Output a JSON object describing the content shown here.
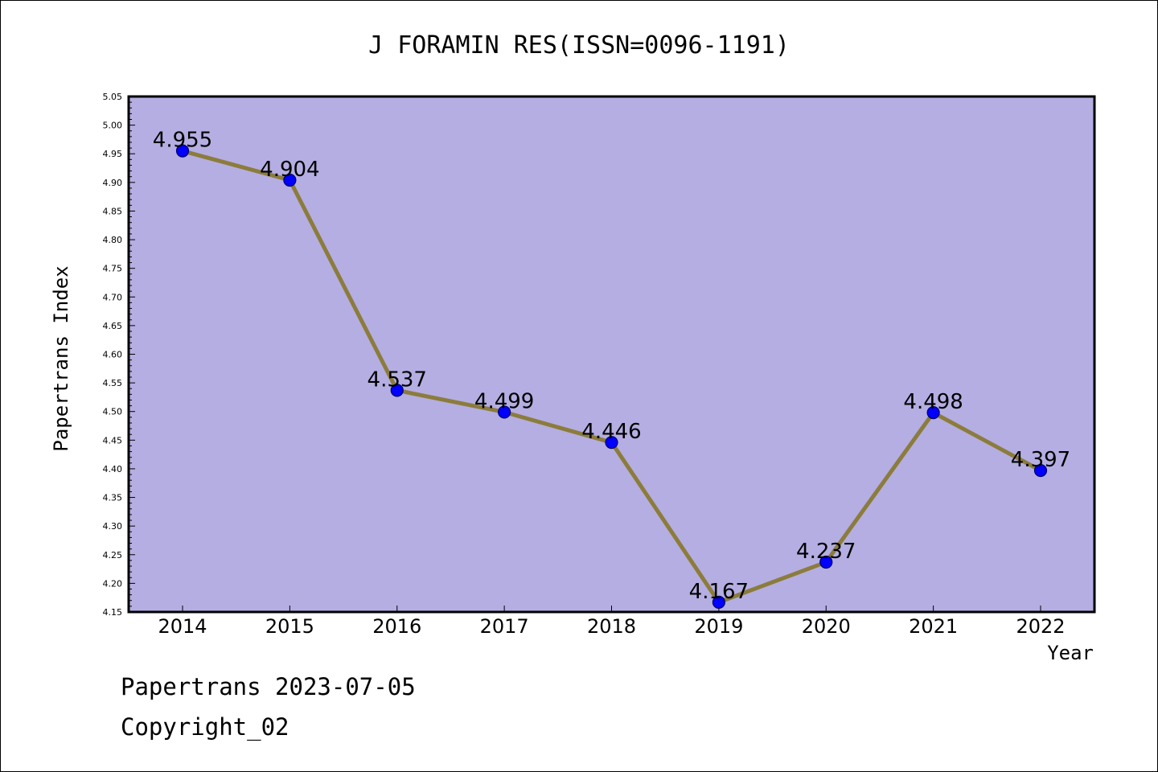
{
  "chart_data": {
    "type": "line",
    "title": "J FORAMIN RES(ISSN=0096-1191)",
    "xlabel": "Year",
    "ylabel": "Papertrans Index",
    "categories": [
      "2014",
      "2015",
      "2016",
      "2017",
      "2018",
      "2019",
      "2020",
      "2021",
      "2022"
    ],
    "series": [
      {
        "values": [
          4.955,
          4.904,
          4.537,
          4.499,
          4.446,
          4.167,
          4.237,
          4.498,
          4.397
        ],
        "labels": [
          "4.955",
          "4.904",
          "4.537",
          "4.499",
          "4.446",
          "4.167",
          "4.237",
          "4.498",
          "4.397"
        ]
      }
    ],
    "ylim": [
      4.15,
      5.05
    ],
    "yticks": [
      "4.15",
      "4.20",
      "4.25",
      "4.30",
      "4.35",
      "4.40",
      "4.45",
      "4.50",
      "4.55",
      "4.60",
      "4.65",
      "4.70",
      "4.75",
      "4.80",
      "4.85",
      "4.90",
      "4.95",
      "5.00",
      "5.05"
    ],
    "grid": false,
    "legend": "none",
    "colors": {
      "plot_background": "#b4aee2",
      "line": "#8c7c3c",
      "marker_fill": "#0000ff",
      "marker_edge": "#000066",
      "axes": "#000000"
    }
  },
  "footer": {
    "line1": "Papertrans 2023-07-05",
    "line2": "Copyright_02"
  }
}
